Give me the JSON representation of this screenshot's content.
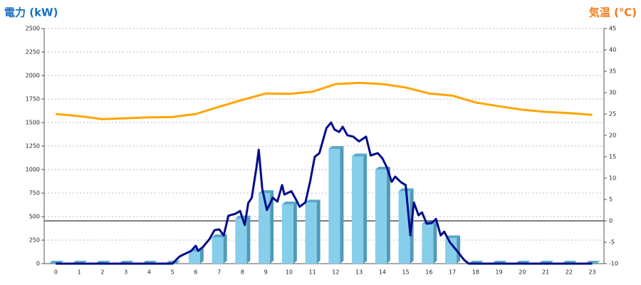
{
  "chart_data": {
    "type": "combo",
    "y_title": "電力 (kW)",
    "y2_title": "気温 (℃)",
    "categories": [
      "0",
      "1",
      "2",
      "3",
      "4",
      "5",
      "6",
      "7",
      "8",
      "9",
      "10",
      "11",
      "12",
      "13",
      "14",
      "15",
      "16",
      "17",
      "18",
      "19",
      "20",
      "21",
      "22",
      "23"
    ],
    "xlim": [
      -0.5,
      23.5
    ],
    "ylim": [
      0,
      2500
    ],
    "yticks": [
      0,
      250,
      500,
      750,
      1000,
      1250,
      1500,
      1750,
      2000,
      2250,
      2500
    ],
    "y2lim": [
      -10,
      45
    ],
    "y2ticks": [
      -10,
      -5,
      0,
      5,
      10,
      15,
      20,
      25,
      30,
      35,
      40,
      45
    ],
    "grid": true,
    "series": [
      {
        "type": "bar",
        "color": "#87ceeb",
        "values": [
          0,
          0,
          0,
          0,
          0,
          0,
          130,
          280,
          480,
          750,
          630,
          650,
          1220,
          1140,
          1000,
          770,
          420,
          270,
          0,
          0,
          0,
          0,
          0,
          0
        ]
      },
      {
        "type": "line",
        "color": "#000c8c",
        "x": [
          0,
          5,
          5.3,
          5.5,
          5.8,
          6,
          6.1,
          6.3,
          6.6,
          6.8,
          7,
          7.2,
          7.4,
          7.7,
          7.9,
          8.1,
          8.25,
          8.4,
          8.6,
          8.7,
          8.85,
          9.05,
          9.3,
          9.5,
          9.7,
          9.8,
          10.1,
          10.3,
          10.45,
          10.7,
          10.9,
          11.1,
          11.3,
          11.6,
          11.8,
          11.95,
          12.15,
          12.3,
          12.5,
          12.75,
          13,
          13.3,
          13.5,
          13.8,
          14,
          14.2,
          14.4,
          14.55,
          14.8,
          15,
          15.2,
          15.35,
          15.55,
          15.7,
          15.9,
          16.1,
          16.3,
          16.5,
          16.65,
          16.9,
          17.2,
          17.5,
          17.7,
          23
        ],
        "values": [
          0,
          0,
          75,
          100,
          135,
          190,
          135,
          175,
          265,
          355,
          365,
          300,
          510,
          530,
          560,
          410,
          645,
          700,
          1020,
          1210,
          795,
          570,
          700,
          660,
          835,
          735,
          770,
          680,
          605,
          650,
          870,
          1135,
          1175,
          1440,
          1500,
          1425,
          1400,
          1455,
          1365,
          1350,
          1300,
          1350,
          1150,
          1175,
          1120,
          1020,
          870,
          925,
          865,
          835,
          300,
          650,
          515,
          545,
          425,
          430,
          475,
          300,
          340,
          225,
          135,
          40,
          0,
          0
        ]
      },
      {
        "type": "line",
        "axis": "y2",
        "color": "#ffa500",
        "values": [
          25,
          24.5,
          23.8,
          24,
          24.2,
          24.3,
          25,
          26.7,
          28.3,
          29.8,
          29.7,
          30.2,
          32,
          32.3,
          32,
          31.2,
          29.8,
          29.3,
          27.7,
          26.8,
          26,
          25.5,
          25.2,
          24.8
        ]
      }
    ]
  }
}
